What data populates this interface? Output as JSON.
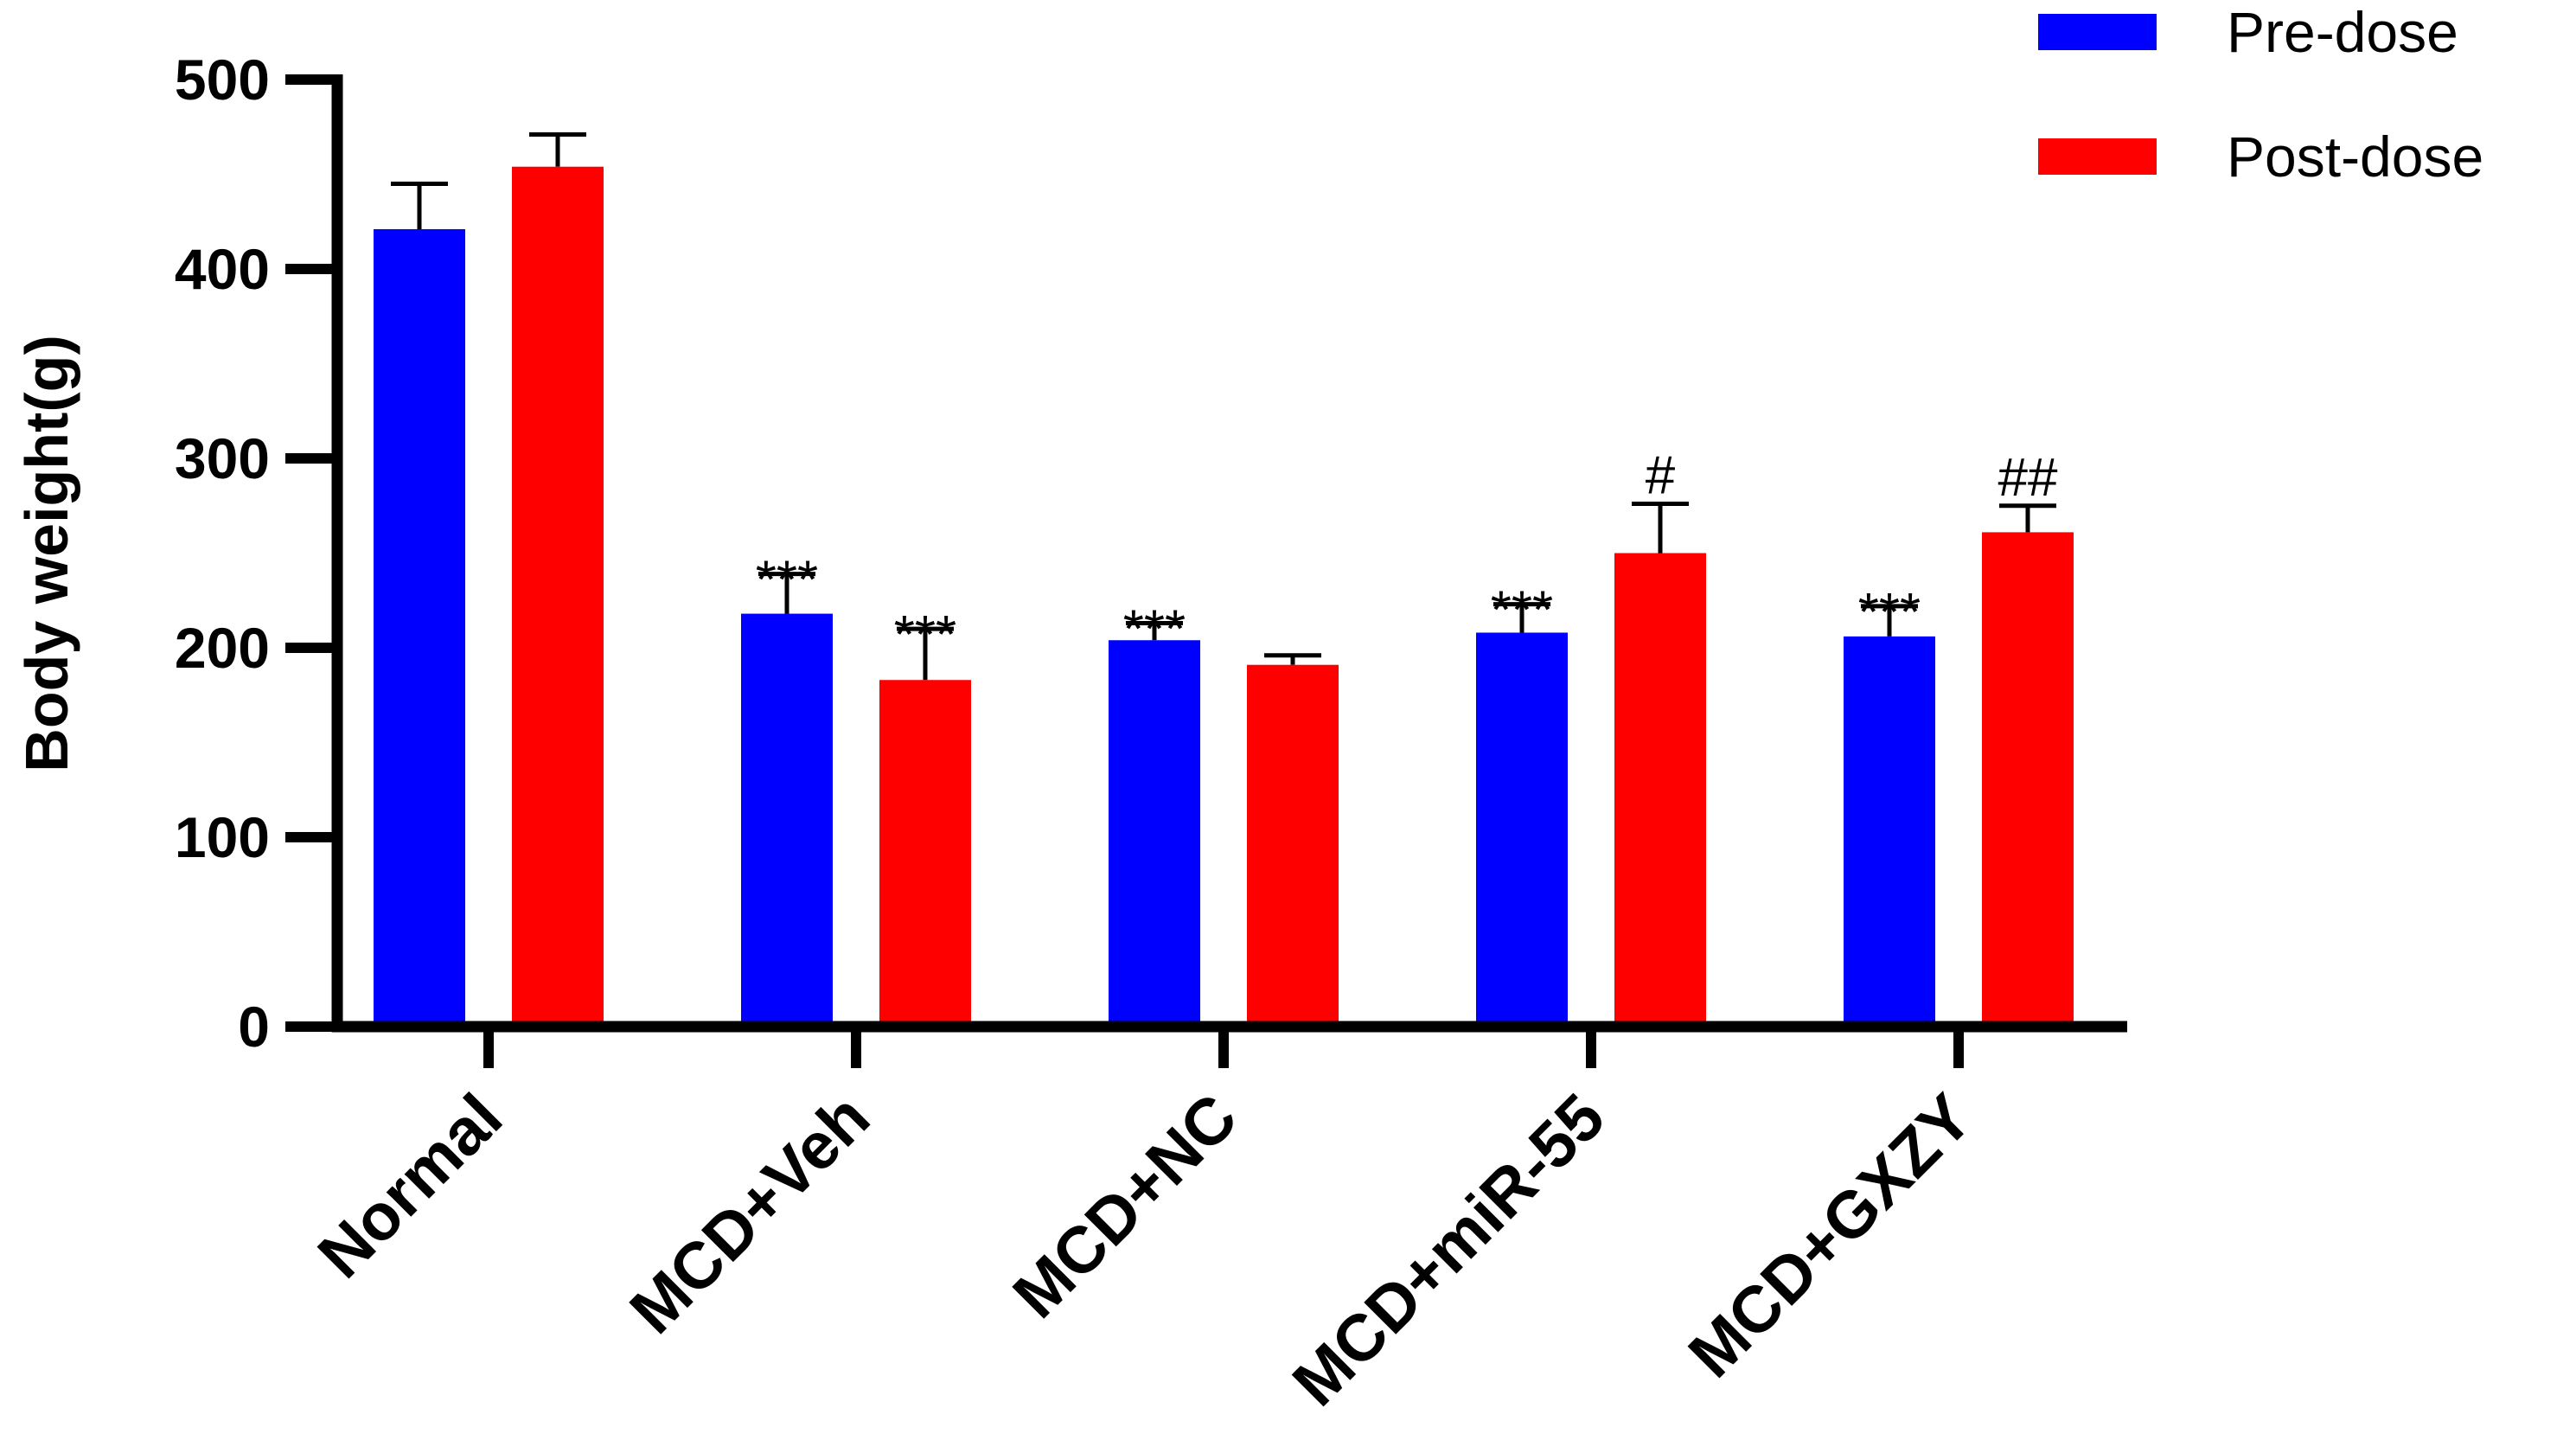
{
  "chart_data": {
    "type": "bar",
    "ylabel": "Body weight(g)",
    "xlabel": "",
    "ylim": [
      0,
      500
    ],
    "yticks": [
      0,
      100,
      200,
      300,
      400,
      500
    ],
    "categories": [
      "Normal",
      "MCD+Veh",
      "MCD+NC",
      "MCD+miR-55",
      "MCD+GXZY"
    ],
    "legend_position": "top-right",
    "series": [
      {
        "name": "Pre-dose",
        "color": "#0000ff",
        "values": [
          421,
          218,
          204,
          208,
          206
        ],
        "errors": [
          24,
          21,
          9,
          15,
          16
        ],
        "annotations": [
          "",
          "***",
          "***",
          "***",
          "***"
        ]
      },
      {
        "name": "Post-dose",
        "color": "#ff0000",
        "values": [
          454,
          183,
          191,
          250,
          261
        ],
        "errors": [
          17,
          27,
          5,
          26,
          14
        ],
        "annotations": [
          "",
          "***",
          "",
          "#",
          "##"
        ]
      }
    ]
  }
}
